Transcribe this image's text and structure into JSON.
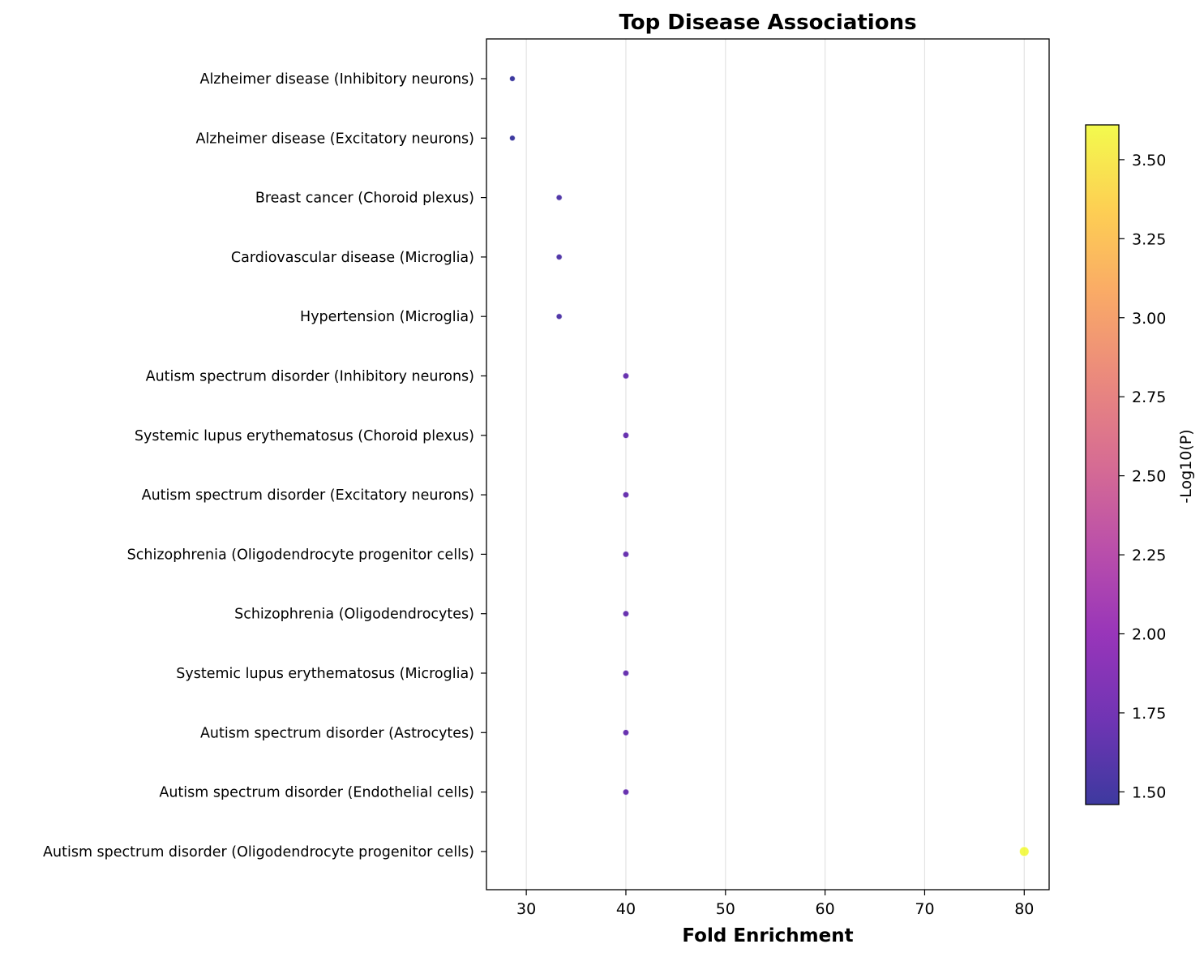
{
  "chart_data": {
    "type": "scatter",
    "title": "Top Disease Associations",
    "xlabel": "Fold Enrichment",
    "ylabel": "",
    "xlim": [
      26,
      82.5
    ],
    "xticks": [
      30,
      40,
      50,
      60,
      70,
      80
    ],
    "grid": "vertical",
    "colormap": "plasma",
    "colorbar": {
      "label": "-Log10(P)",
      "range": [
        1.46,
        3.61
      ],
      "ticks": [
        "1.50",
        "1.75",
        "2.00",
        "2.25",
        "2.50",
        "2.75",
        "3.00",
        "3.25",
        "3.50"
      ],
      "tick_values": [
        1.5,
        1.75,
        2.0,
        2.25,
        2.5,
        2.75,
        3.0,
        3.25,
        3.5
      ]
    },
    "points": [
      {
        "label": "Alzheimer disease (Inhibitory neurons)",
        "x": 28.6,
        "neglog10p": 1.46
      },
      {
        "label": "Alzheimer disease (Excitatory neurons)",
        "x": 28.6,
        "neglog10p": 1.46
      },
      {
        "label": "Breast cancer (Choroid plexus)",
        "x": 33.3,
        "neglog10p": 1.57
      },
      {
        "label": "Cardiovascular disease (Microglia)",
        "x": 33.3,
        "neglog10p": 1.57
      },
      {
        "label": "Hypertension (Microglia)",
        "x": 33.3,
        "neglog10p": 1.57
      },
      {
        "label": "Autism spectrum disorder (Inhibitory neurons)",
        "x": 40.0,
        "neglog10p": 1.7
      },
      {
        "label": "Systemic lupus erythematosus (Choroid plexus)",
        "x": 40.0,
        "neglog10p": 1.7
      },
      {
        "label": "Autism spectrum disorder (Excitatory neurons)",
        "x": 40.0,
        "neglog10p": 1.7
      },
      {
        "label": "Schizophrenia (Oligodendrocyte progenitor cells)",
        "x": 40.0,
        "neglog10p": 1.7
      },
      {
        "label": "Schizophrenia (Oligodendrocytes)",
        "x": 40.0,
        "neglog10p": 1.7
      },
      {
        "label": "Systemic lupus erythematosus (Microglia)",
        "x": 40.0,
        "neglog10p": 1.7
      },
      {
        "label": "Autism spectrum disorder (Astrocytes)",
        "x": 40.0,
        "neglog10p": 1.7
      },
      {
        "label": "Autism spectrum disorder (Endothelial cells)",
        "x": 40.0,
        "neglog10p": 1.7
      },
      {
        "label": "Autism spectrum disorder (Oligodendrocyte progenitor cells)",
        "x": 80.0,
        "neglog10p": 3.61
      }
    ]
  }
}
